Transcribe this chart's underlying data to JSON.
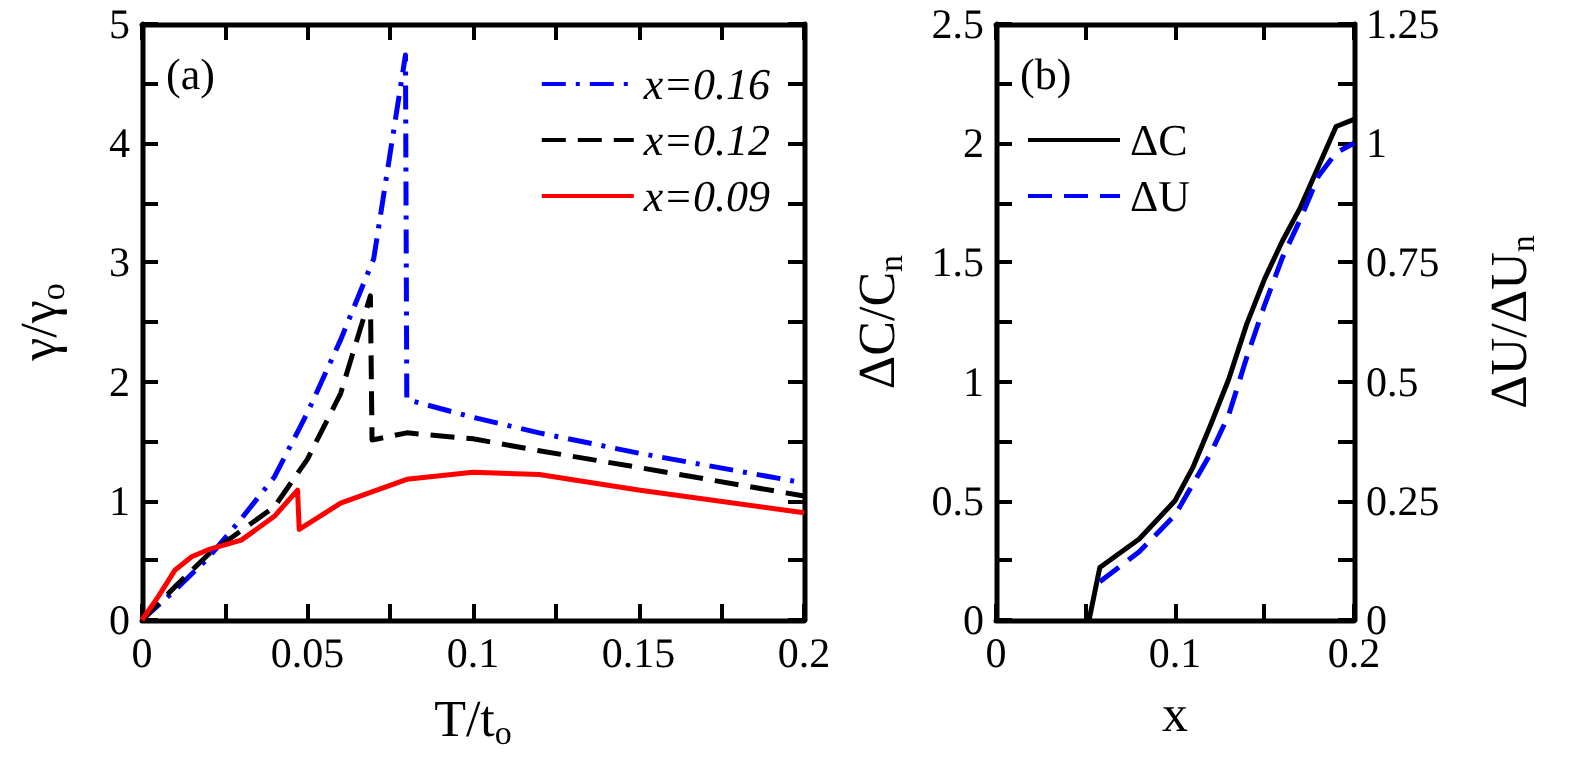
{
  "chart_data": [
    {
      "type": "line",
      "xlabel": "T/t$_{o}$",
      "ylabel": "γ/γ$_{o}$",
      "annotations": [
        "(a)"
      ],
      "legend": "top right",
      "grid": false,
      "marker": "none",
      "xlim": [
        0,
        0.2
      ],
      "ylim": [
        0,
        5
      ],
      "xticks": [
        0,
        {
          "value": 0.025,
          "label": null
        },
        0.05,
        {
          "value": 0.075,
          "label": null
        },
        0.1,
        {
          "value": 0.125,
          "label": null
        },
        0.15,
        {
          "value": 0.175,
          "label": null
        },
        0.2
      ],
      "yticks": [
        0,
        {
          "value": 0.5,
          "label": null
        },
        1,
        {
          "value": 1.5,
          "label": null
        },
        2,
        {
          "value": 2.5,
          "label": null
        },
        3,
        {
          "value": 3.5,
          "label": null
        },
        4,
        {
          "value": 4.5,
          "label": null
        },
        5
      ],
      "series": [
        {
          "name": "x=0.16",
          "color": "#0000ff",
          "line_style": "dashdot",
          "x": [
            0,
            0.01,
            0.02,
            0.03,
            0.04,
            0.05,
            0.06,
            0.07,
            0.0796,
            0.08,
            0.1,
            0.12,
            0.15,
            0.2
          ],
          "values": [
            0,
            0.25,
            0.52,
            0.85,
            1.2,
            1.74,
            2.35,
            3.03,
            4.74,
            1.85,
            1.7,
            1.57,
            1.4,
            1.15
          ]
        },
        {
          "name": "x=0.12",
          "color": "#000000",
          "line_style": "dashed",
          "x": [
            0,
            0.01,
            0.02,
            0.03,
            0.04,
            0.05,
            0.06,
            0.069,
            0.0695,
            0.08,
            0.1,
            0.12,
            0.15,
            0.2
          ],
          "values": [
            0,
            0.28,
            0.55,
            0.75,
            0.95,
            1.35,
            1.9,
            2.72,
            1.51,
            1.57,
            1.52,
            1.42,
            1.28,
            1.04
          ]
        },
        {
          "name": "x=0.09",
          "color": "#ff0000",
          "line_style": "solid",
          "x": [
            0,
            0.005,
            0.01,
            0.015,
            0.02,
            0.03,
            0.04,
            0.047,
            0.0475,
            0.06,
            0.08,
            0.1,
            0.12,
            0.15,
            0.2
          ],
          "values": [
            0,
            0.2,
            0.42,
            0.53,
            0.59,
            0.67,
            0.87,
            1.09,
            0.76,
            0.98,
            1.18,
            1.24,
            1.22,
            1.09,
            0.9
          ]
        }
      ]
    },
    {
      "type": "line",
      "xlabel": "x",
      "ylabel": "ΔC/C$_{n}$",
      "y2label": "ΔU/ΔU$_{n}$",
      "annotations": [
        "(b)"
      ],
      "legend": "top left",
      "grid": false,
      "marker": "none",
      "xlim": [
        0,
        0.2
      ],
      "ylim": [
        0,
        2.5
      ],
      "y2lim": [
        0,
        1.25
      ],
      "xticks": [
        0,
        {
          "value": 0.05,
          "label": null
        },
        0.1,
        {
          "value": 0.15,
          "label": null
        },
        0.2
      ],
      "yticks": [
        0,
        {
          "value": 0.25,
          "label": null
        },
        0.5,
        {
          "value": 0.75,
          "label": null
        },
        1,
        {
          "value": 1.25,
          "label": null
        },
        1.5,
        {
          "value": 1.75,
          "label": null
        },
        2,
        {
          "value": 2.25,
          "label": null
        },
        2.5
      ],
      "y2ticks": [
        0,
        {
          "value": 0.125,
          "label": null
        },
        0.25,
        {
          "value": 0.375,
          "label": null
        },
        0.5,
        {
          "value": 0.625,
          "label": null
        },
        0.75,
        {
          "value": 0.875,
          "label": null
        },
        1,
        {
          "value": 1.125,
          "label": null
        },
        1.25
      ],
      "series": [
        {
          "name": "ΔC",
          "color": "#000000",
          "line_style": "solid",
          "x": [
            0.052,
            0.058,
            0.08,
            0.1,
            0.11,
            0.12,
            0.13,
            0.14,
            0.15,
            0.16,
            0.17,
            0.18,
            0.19,
            0.2
          ],
          "values": [
            0,
            0.22,
            0.34,
            0.5,
            0.64,
            0.82,
            1.01,
            1.24,
            1.43,
            1.59,
            1.73,
            1.9,
            2.07,
            2.1
          ]
        },
        {
          "name": "ΔU",
          "color": "#0000ff",
          "line_style": "dashed",
          "axis": "y2",
          "x": [
            0.058,
            0.08,
            0.1,
            0.12,
            0.13,
            0.14,
            0.15,
            0.16,
            0.17,
            0.18,
            0.19,
            0.2
          ],
          "values": [
            0.08,
            0.143,
            0.22,
            0.35,
            0.43,
            0.55,
            0.66,
            0.76,
            0.84,
            0.93,
            0.98,
            1.0
          ]
        }
      ]
    }
  ]
}
